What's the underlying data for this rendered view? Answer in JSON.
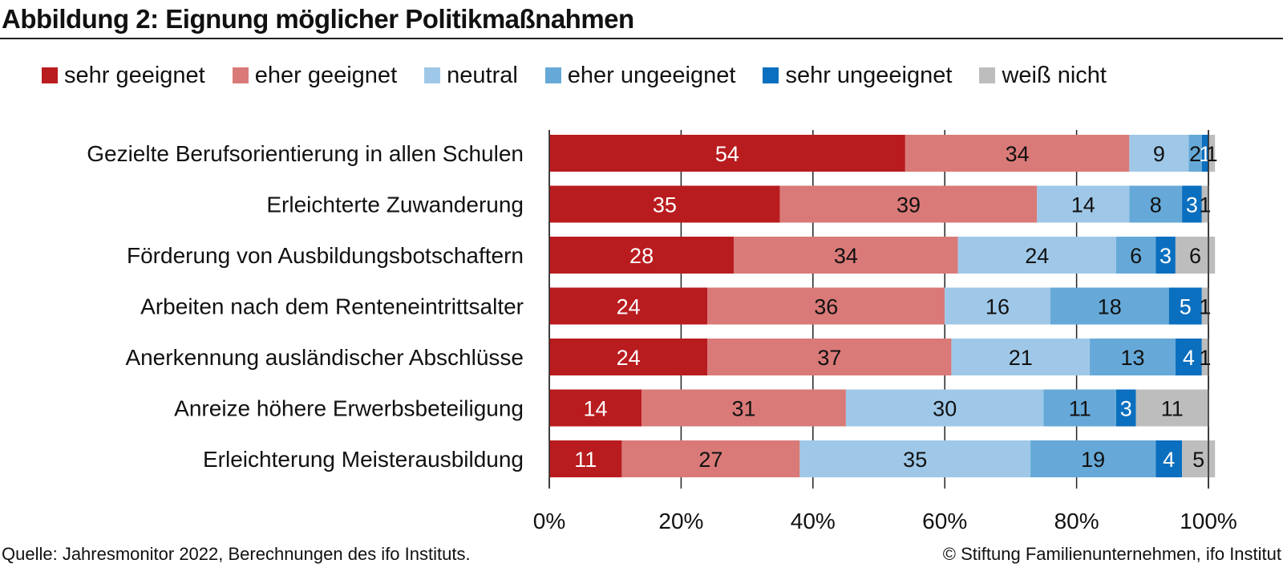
{
  "chart_data": {
    "type": "bar",
    "orientation": "horizontal",
    "stacked": true,
    "title": "Abbildung 2: Eignung möglicher Politikmaßnahmen",
    "xlabel": "",
    "ylabel": "",
    "xlim": [
      0,
      100
    ],
    "xticks": [
      "0%",
      "20%",
      "40%",
      "60%",
      "80%",
      "100%"
    ],
    "grid": false,
    "legend_position": "top",
    "categories": [
      "Gezielte Berufsorientierung in allen Schulen",
      "Erleichterte Zuwanderung",
      "Förderung von Ausbildungsbotschaftern",
      "Arbeiten nach dem Renteneintrittsalter",
      "Anerkennung ausländischer Abschlüsse",
      "Anreize höhere Erwerbsbeteiligung",
      "Erleichterung Meisterausbildung"
    ],
    "series": [
      {
        "name": "sehr geeignet",
        "color": "#b91c1f",
        "label_color": "#ffffff",
        "values": [
          54,
          35,
          28,
          24,
          24,
          14,
          11
        ]
      },
      {
        "name": "eher geeignet",
        "color": "#d97a78",
        "label_color": "#111111",
        "values": [
          34,
          39,
          34,
          36,
          37,
          31,
          27
        ]
      },
      {
        "name": "neutral",
        "color": "#9fc8e8",
        "label_color": "#111111",
        "values": [
          9,
          14,
          24,
          16,
          21,
          30,
          35
        ]
      },
      {
        "name": "eher ungeeignet",
        "color": "#66a9d8",
        "label_color": "#111111",
        "values": [
          2,
          8,
          6,
          18,
          13,
          11,
          19
        ]
      },
      {
        "name": "sehr ungeeignet",
        "color": "#0b6fbf",
        "label_color": "#ffffff",
        "values": [
          1,
          3,
          3,
          5,
          4,
          3,
          4
        ]
      },
      {
        "name": "weiß nicht",
        "color": "#bdbdbd",
        "label_color": "#111111",
        "values": [
          1,
          1,
          6,
          1,
          1,
          11,
          5
        ]
      }
    ]
  },
  "footer": {
    "source": "Quelle: Jahresmonitor 2022, Berechnungen des ifo Instituts.",
    "copyright": "© Stiftung Familienunternehmen, ifo Institut"
  }
}
